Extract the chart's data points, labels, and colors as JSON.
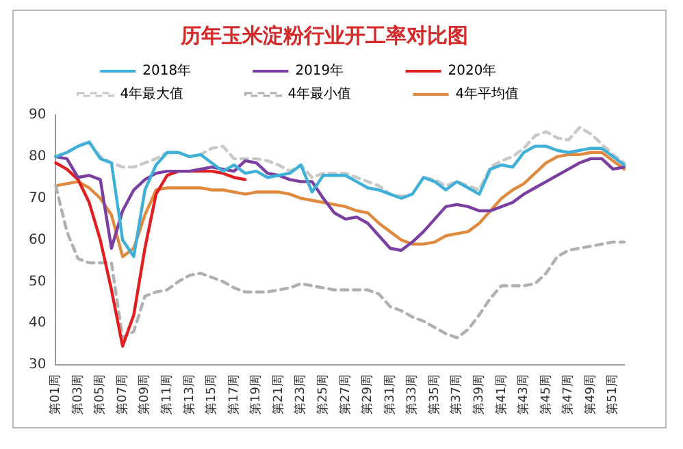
{
  "chart_data": {
    "type": "line",
    "title": "历年玉米淀粉行业开工率对比图",
    "categories": [
      "第01周",
      null,
      "第03周",
      null,
      "第05周",
      null,
      "第07周",
      null,
      "第09周",
      null,
      "第11周",
      null,
      "第13周",
      null,
      "第15周",
      null,
      "第17周",
      null,
      "第19周",
      null,
      "第21周",
      null,
      "第23周",
      null,
      "第25周",
      null,
      "第27周",
      null,
      "第29周",
      null,
      "第31周",
      null,
      "第33周",
      null,
      "第35周",
      null,
      "第37周",
      null,
      "第39周",
      null,
      "第41周",
      null,
      "第43周",
      null,
      "第45周",
      null,
      "第47周",
      null,
      "第49周",
      null,
      "第51周",
      null
    ],
    "series": [
      {
        "name": "2018年",
        "color": "#3fb0d8",
        "values": [
          80,
          81,
          82.5,
          83.5,
          79.5,
          78.5,
          60,
          56,
          72,
          78,
          81,
          81,
          80,
          80.5,
          78.5,
          76.5,
          78,
          76,
          76.5,
          75,
          75.5,
          76,
          78,
          71.5,
          75.5,
          75.5,
          75.5,
          74,
          72.5,
          72,
          71,
          70,
          71,
          75,
          74,
          72,
          74,
          72.5,
          71,
          77,
          78,
          77.5,
          81,
          82.5,
          82.5,
          81.5,
          81,
          81.5,
          82,
          82,
          80,
          78
        ]
      },
      {
        "name": "2019年",
        "color": "#7a3fa0",
        "values": [
          80,
          79.5,
          75,
          75.5,
          74.5,
          58,
          67,
          72,
          74.5,
          76,
          76.5,
          76.5,
          76.5,
          77,
          77.5,
          77,
          76.5,
          79,
          78.5,
          76,
          75.5,
          74.5,
          74,
          74,
          70,
          66.5,
          65,
          65.5,
          64,
          61,
          58,
          57.5,
          59.5,
          62,
          65,
          68,
          68.5,
          68,
          67,
          67,
          68,
          69,
          71,
          72.5,
          74,
          75.5,
          77,
          78.5,
          79.5,
          79.5,
          77,
          77.5
        ]
      },
      {
        "name": "2020年",
        "color": "#e02020",
        "values": [
          78.5,
          77,
          74.5,
          69,
          60,
          48,
          34.5,
          42,
          58,
          71,
          75.5,
          76.5,
          76.5,
          76.5,
          76.5,
          76,
          75,
          74.5,
          null,
          null,
          null,
          null,
          null,
          null,
          null,
          null,
          null,
          null,
          null,
          null,
          null,
          null,
          null,
          null,
          null,
          null,
          null,
          null,
          null,
          null,
          null,
          null,
          null,
          null,
          null,
          null,
          null,
          null,
          null,
          null,
          null,
          null
        ]
      },
      {
        "name": "4年最大值",
        "color": "#c8c8c8",
        "line_style": "dashed",
        "values": [
          80,
          81,
          82.5,
          83.5,
          80,
          78.5,
          77.5,
          77.5,
          78.5,
          79.5,
          81,
          81,
          80,
          80.5,
          82,
          82.5,
          79.5,
          79.5,
          79.5,
          79,
          78,
          76.5,
          78,
          75,
          76,
          76,
          76,
          75,
          74,
          73,
          71,
          70.5,
          71,
          75,
          74.5,
          73,
          74,
          73,
          72,
          77.5,
          79,
          80,
          82,
          85,
          86,
          84.5,
          84,
          87,
          85.5,
          83,
          80.5,
          78.5
        ]
      },
      {
        "name": "4年最小值",
        "color": "#b0b0b0",
        "line_style": "dashed",
        "values": [
          73,
          62,
          55.5,
          54.5,
          54.5,
          54.5,
          36.5,
          38,
          46.5,
          47.5,
          48,
          50,
          51.5,
          52,
          51,
          50,
          48.5,
          47.5,
          47.5,
          47.5,
          48,
          48.5,
          49.5,
          49,
          48.5,
          48,
          48,
          48,
          48,
          47,
          44,
          43,
          41.5,
          40.5,
          39,
          37.5,
          36.5,
          38.5,
          42,
          46,
          49,
          49,
          49,
          49.5,
          52,
          56,
          57.5,
          58,
          58.5,
          59,
          59.5,
          59.5
        ]
      },
      {
        "name": "4年平均值",
        "color": "#e08a40",
        "values": [
          73,
          73.5,
          74,
          72.5,
          70,
          66,
          56,
          58,
          66,
          72,
          72.5,
          72.5,
          72.5,
          72.5,
          72,
          72,
          71.5,
          71,
          71.5,
          71.5,
          71.5,
          71,
          70,
          69.5,
          69,
          68.5,
          68,
          67,
          66.5,
          64,
          62,
          60,
          59,
          59,
          59.5,
          61,
          61.5,
          62,
          64,
          67,
          70,
          72,
          73.5,
          76,
          78.5,
          80,
          80.5,
          80.5,
          81,
          81,
          79,
          77
        ]
      }
    ],
    "ylim": [
      30,
      90
    ],
    "yticks": [
      30,
      40,
      50,
      60,
      70,
      80,
      90
    ],
    "grid": false,
    "legend": "top",
    "marker": "none",
    "line_style": "solid"
  }
}
